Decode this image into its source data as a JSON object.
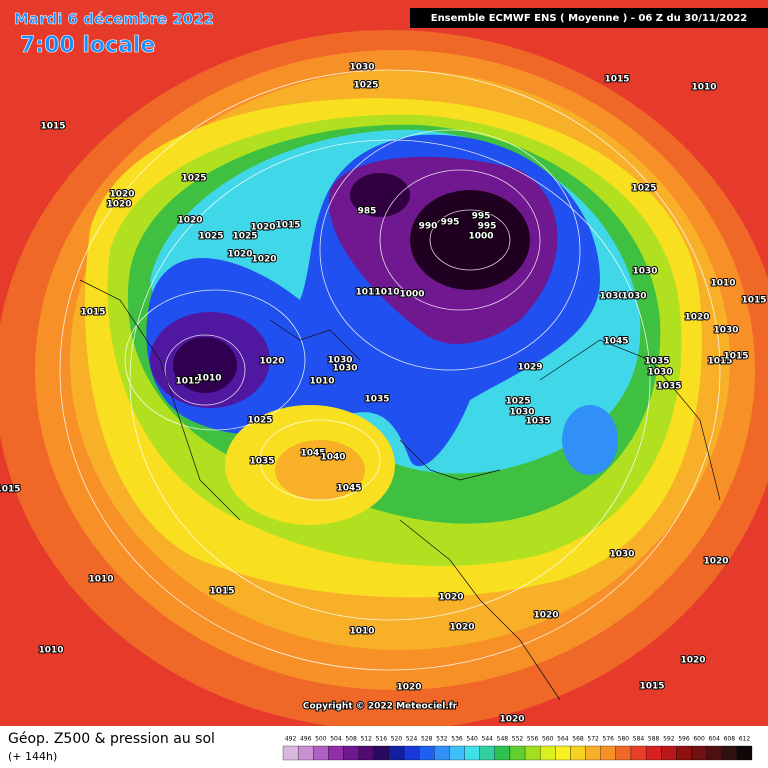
{
  "header": {
    "title": "Mardi 6 décembre 2022",
    "subtitle": "7:00 locale",
    "model": "Ensemble ECMWF ENS  ( Moyenne )  -  06 Z du 30/11/2022"
  },
  "map": {
    "copyright": "Copyright © 2022 Meteociel.fr",
    "isobar_labels": [
      1030,
      1025,
      1015,
      1010,
      1015,
      1025,
      1025,
      1020,
      1020,
      1020,
      985,
      990,
      995,
      995,
      995,
      1000,
      1025,
      1025,
      1020,
      1015,
      1020,
      1020,
      1030,
      1010,
      1015,
      1010,
      1000,
      1030,
      1030,
      1015,
      1015,
      1020,
      1030,
      1045,
      1020,
      1030,
      1030,
      1029,
      1035,
      1015,
      1015,
      1015,
      1010,
      1010,
      1030,
      1035,
      1035,
      1025,
      1030,
      1035,
      1025,
      1035,
      1045,
      1040,
      1045,
      1015,
      1030,
      1020,
      1010,
      1015,
      1020,
      1020,
      1020,
      1010,
      1010,
      1020,
      1015,
      1020,
      1020
    ]
  },
  "footer": {
    "title": "Géop. Z500 & pression au sol",
    "lead": "(+ 144h)",
    "scale": [
      492,
      496,
      500,
      504,
      508,
      512,
      516,
      520,
      524,
      528,
      532,
      536,
      540,
      544,
      548,
      552,
      556,
      560,
      564,
      568,
      572,
      576,
      580,
      584,
      588,
      592,
      596,
      600,
      604,
      608,
      612
    ],
    "scale_colors": [
      "#d9b8e0",
      "#c890d0",
      "#b060c0",
      "#9030a8",
      "#701890",
      "#500a70",
      "#2a0a60",
      "#1020a0",
      "#1838d8",
      "#2060f0",
      "#3090f8",
      "#40c0f8",
      "#40e0e8",
      "#30d0a0",
      "#30c050",
      "#60d030",
      "#a0e020",
      "#d8f020",
      "#f8f020",
      "#f8d020",
      "#f8b028",
      "#f89028",
      "#f06828",
      "#e84028",
      "#d82020",
      "#b81818",
      "#901010",
      "#701010",
      "#501010",
      "#301010",
      "#100808"
    ]
  }
}
